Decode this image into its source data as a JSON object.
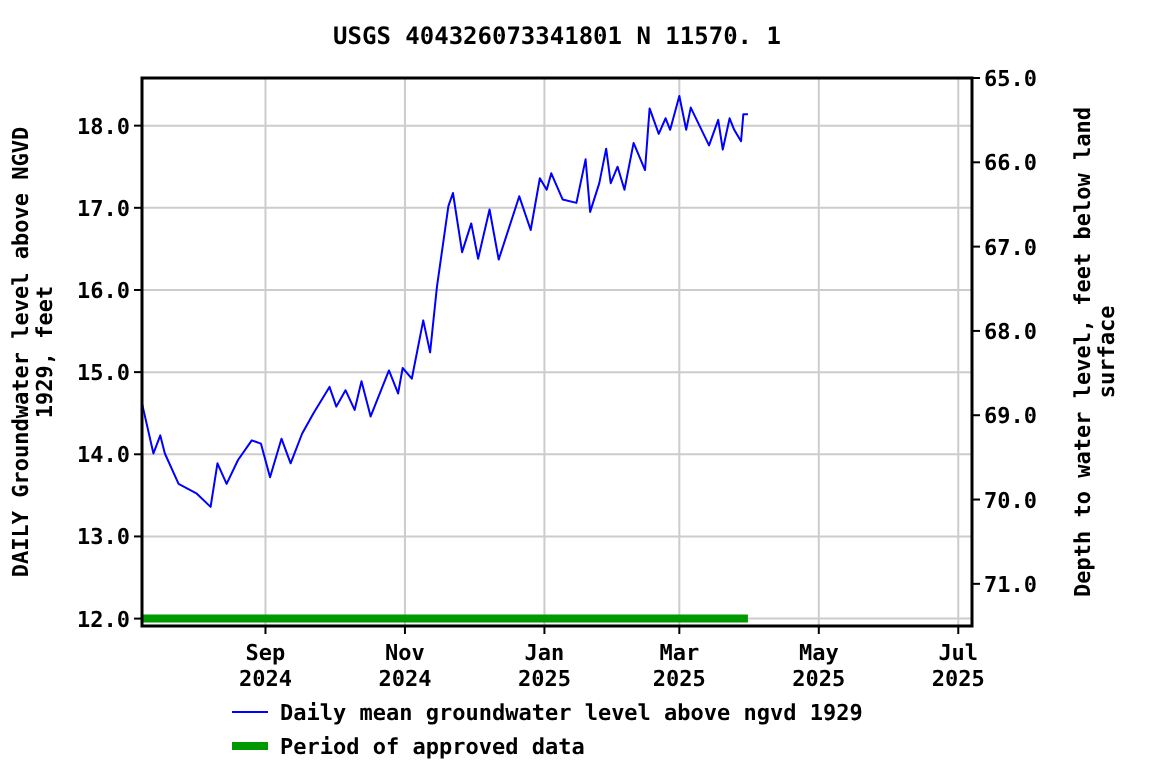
{
  "chart_data": {
    "type": "line",
    "title": "USGS 404326073341801 N 11570. 1",
    "ylabel": "DAILY Groundwater level above NGVD 1929, feet",
    "y2label": "Depth to water level, feet below land surface",
    "xlim": [
      "2024-07-09",
      "2025-07-07"
    ],
    "xticks": [
      {
        "value": "2024-09-01",
        "label": "Sep\n2024"
      },
      {
        "value": "2024-11-01",
        "label": "Nov\n2024"
      },
      {
        "value": "2025-01-01",
        "label": "Jan\n2025"
      },
      {
        "value": "2025-03-01",
        "label": "Mar\n2025"
      },
      {
        "value": "2025-05-01",
        "label": "May\n2025"
      },
      {
        "value": "2025-07-01",
        "label": "Jul\n2025"
      }
    ],
    "ylim": [
      11.91,
      18.58
    ],
    "yticks": [
      {
        "value": 12,
        "label": "12.0"
      },
      {
        "value": 13,
        "label": "13.0"
      },
      {
        "value": 14,
        "label": "14.0"
      },
      {
        "value": 15,
        "label": "15.0"
      },
      {
        "value": 16,
        "label": "16.0"
      },
      {
        "value": 17,
        "label": "17.0"
      },
      {
        "value": 18,
        "label": "18.0"
      }
    ],
    "y2lim": [
      71.5,
      65.0
    ],
    "y2ticks": [
      {
        "value": 65,
        "label": "65.0"
      },
      {
        "value": 66,
        "label": "66.0"
      },
      {
        "value": 67,
        "label": "67.0"
      },
      {
        "value": 68,
        "label": "68.0"
      },
      {
        "value": 69,
        "label": "69.0"
      },
      {
        "value": 70,
        "label": "70.0"
      },
      {
        "value": 71,
        "label": "71.0"
      }
    ],
    "grid": true,
    "legend": "bottom",
    "series": [
      {
        "name": "Daily mean groundwater level above ngvd 1929",
        "color": "#0000ff",
        "x": [
          "2024-07-09",
          "2024-07-14",
          "2024-07-17",
          "2024-07-19",
          "2024-07-25",
          "2024-08-02",
          "2024-08-08",
          "2024-08-11",
          "2024-08-15",
          "2024-08-20",
          "2024-08-26",
          "2024-08-30",
          "2024-09-03",
          "2024-09-08",
          "2024-09-12",
          "2024-09-17",
          "2024-09-22",
          "2024-09-29",
          "2024-10-02",
          "2024-10-06",
          "2024-10-10",
          "2024-10-13",
          "2024-10-17",
          "2024-10-25",
          "2024-10-29",
          "2024-10-31",
          "2024-11-04",
          "2024-11-09",
          "2024-11-12",
          "2024-11-15",
          "2024-11-20",
          "2024-11-22",
          "2024-11-26",
          "2024-11-30",
          "2024-12-03",
          "2024-12-08",
          "2024-12-12",
          "2024-12-21",
          "2024-12-26",
          "2024-12-30",
          "2025-01-02",
          "2025-01-04",
          "2025-01-09",
          "2025-01-15",
          "2025-01-19",
          "2025-01-21",
          "2025-01-25",
          "2025-01-28",
          "2025-01-30",
          "2025-02-02",
          "2025-02-05",
          "2025-02-09",
          "2025-02-14",
          "2025-02-16",
          "2025-02-20",
          "2025-02-23",
          "2025-02-25",
          "2025-03-01",
          "2025-03-04",
          "2025-03-06",
          "2025-03-14",
          "2025-03-18",
          "2025-03-20",
          "2025-03-23",
          "2025-03-25",
          "2025-03-28",
          "2025-03-29",
          "2025-03-31"
        ],
        "values": [
          14.62,
          14.01,
          14.23,
          14.01,
          13.64,
          13.52,
          13.36,
          13.89,
          13.64,
          13.93,
          14.17,
          14.13,
          13.72,
          14.19,
          13.89,
          14.25,
          14.5,
          14.82,
          14.58,
          14.78,
          14.54,
          14.89,
          14.46,
          15.02,
          14.74,
          15.05,
          14.92,
          15.63,
          15.24,
          16.04,
          17.02,
          17.18,
          16.46,
          16.81,
          16.38,
          16.98,
          16.37,
          17.14,
          16.73,
          17.36,
          17.22,
          17.42,
          17.1,
          17.06,
          17.59,
          16.95,
          17.3,
          17.72,
          17.3,
          17.5,
          17.22,
          17.79,
          17.46,
          18.21,
          17.9,
          18.09,
          17.95,
          18.36,
          17.95,
          18.22,
          17.76,
          18.07,
          17.71,
          18.09,
          17.95,
          17.81,
          18.14,
          18.14
        ]
      },
      {
        "name": "Period of approved data",
        "color": "#009900",
        "x": [
          "2024-07-09",
          "2025-03-31"
        ],
        "values": [
          12.0,
          12.0
        ]
      }
    ]
  }
}
